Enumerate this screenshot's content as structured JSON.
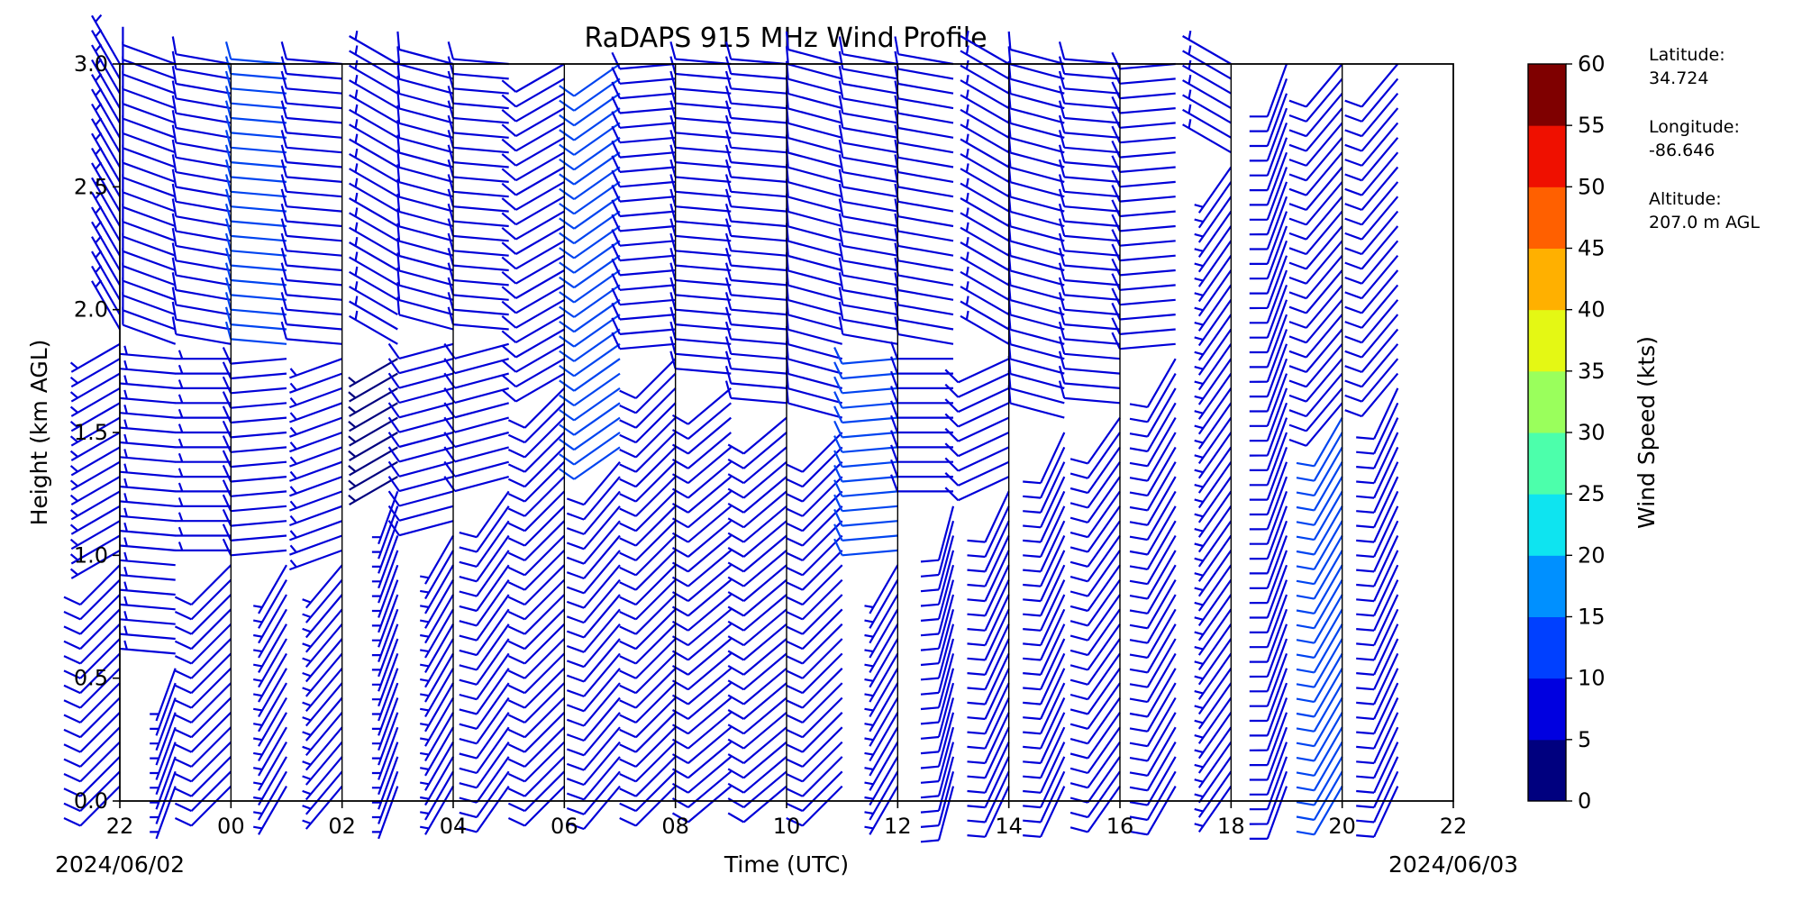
{
  "chart_data": {
    "type": "wind_barb_time_height",
    "title": "RaDAPS 915 MHz Wind Profile",
    "xlabel": "Time (UTC)",
    "ylabel": "Height (km AGL)",
    "x_tick_labels": [
      "22",
      "00",
      "02",
      "04",
      "06",
      "08",
      "10",
      "12",
      "14",
      "16",
      "18",
      "20",
      "22"
    ],
    "x_date_labels": {
      "start": "2024/06/02",
      "end": "2024/06/03"
    },
    "xlim": [
      "2024-06-02 22:00",
      "2024-06-03 22:00"
    ],
    "ylim": [
      0.0,
      3.0
    ],
    "y_ticks": [
      0.0,
      0.5,
      1.0,
      1.5,
      2.0,
      2.5,
      3.0
    ],
    "y_tick_labels": [
      "0.0",
      "0.5",
      "1.0",
      "1.5",
      "2.0",
      "2.5",
      "3.0"
    ],
    "height_sampling_km": {
      "start": 0.06,
      "end": 3.0,
      "step": 0.06
    },
    "profile_hours_utc": [
      22.0,
      23.0,
      0.0,
      1.0,
      2.0,
      3.0,
      4.0,
      5.0,
      6.0,
      7.0,
      8.0,
      9.0,
      10.0,
      11.0,
      12.0,
      13.0,
      14.0,
      15.0,
      16.0,
      17.0,
      18.0,
      19.0,
      20.0,
      21.0
    ],
    "profile_separators_utc": [
      "00",
      "02",
      "04",
      "06",
      "08",
      "10",
      "12",
      "14",
      "16",
      "18",
      "20"
    ],
    "wind_profile_segments": [
      {
        "hour": 22.0,
        "layers": [
          {
            "top_km": 1.0,
            "dir_deg": 225,
            "speed_kts": 8
          },
          {
            "top_km": 1.9,
            "dir_deg": 240,
            "speed_kts": 6
          },
          {
            "top_km": 3.0,
            "dir_deg": 330,
            "speed_kts": 6
          }
        ]
      },
      {
        "hour": 23.0,
        "layers": [
          {
            "top_km": 0.6,
            "dir_deg": 200,
            "speed_kts": 6
          },
          {
            "top_km": 1.8,
            "dir_deg": 275,
            "speed_kts": 7
          },
          {
            "top_km": 3.0,
            "dir_deg": 290,
            "speed_kts": 9
          }
        ]
      },
      {
        "hour": 0.0,
        "layers": [
          {
            "top_km": 1.0,
            "dir_deg": 225,
            "speed_kts": 8
          },
          {
            "top_km": 1.8,
            "dir_deg": 270,
            "speed_kts": 7
          },
          {
            "top_km": 3.0,
            "dir_deg": 280,
            "speed_kts": 10
          }
        ]
      },
      {
        "hour": 1.0,
        "layers": [
          {
            "top_km": 1.0,
            "dir_deg": 210,
            "speed_kts": 7
          },
          {
            "top_km": 1.8,
            "dir_deg": 265,
            "speed_kts": 9
          },
          {
            "top_km": 3.0,
            "dir_deg": 275,
            "speed_kts": 12
          }
        ]
      },
      {
        "hour": 2.0,
        "layers": [
          {
            "top_km": 1.0,
            "dir_deg": 220,
            "speed_kts": 7
          },
          {
            "top_km": 1.8,
            "dir_deg": 250,
            "speed_kts": 6
          },
          {
            "top_km": 3.0,
            "dir_deg": 275,
            "speed_kts": 9
          }
        ]
      },
      {
        "hour": 3.0,
        "layers": [
          {
            "top_km": 1.3,
            "dir_deg": 200,
            "speed_kts": 6
          },
          {
            "top_km": 1.8,
            "dir_deg": 240,
            "speed_kts": 5
          },
          {
            "top_km": 3.0,
            "dir_deg": 300,
            "speed_kts": 6
          }
        ]
      },
      {
        "hour": 4.0,
        "layers": [
          {
            "top_km": 1.1,
            "dir_deg": 210,
            "speed_kts": 7
          },
          {
            "top_km": 1.9,
            "dir_deg": 255,
            "speed_kts": 9
          },
          {
            "top_km": 3.0,
            "dir_deg": 285,
            "speed_kts": 10
          }
        ]
      },
      {
        "hour": 5.0,
        "layers": [
          {
            "top_km": 1.3,
            "dir_deg": 215,
            "speed_kts": 9
          },
          {
            "top_km": 1.9,
            "dir_deg": 255,
            "speed_kts": 10
          },
          {
            "top_km": 3.0,
            "dir_deg": 275,
            "speed_kts": 10
          }
        ]
      },
      {
        "hour": 6.0,
        "layers": [
          {
            "top_km": 1.7,
            "dir_deg": 225,
            "speed_kts": 10
          },
          {
            "top_km": 3.0,
            "dir_deg": 240,
            "speed_kts": 9
          }
        ]
      },
      {
        "hour": 7.0,
        "layers": [
          {
            "top_km": 1.4,
            "dir_deg": 220,
            "speed_kts": 10
          },
          {
            "top_km": 3.0,
            "dir_deg": 235,
            "speed_kts": 12
          }
        ]
      },
      {
        "hour": 8.0,
        "layers": [
          {
            "top_km": 1.8,
            "dir_deg": 225,
            "speed_kts": 10
          },
          {
            "top_km": 3.0,
            "dir_deg": 265,
            "speed_kts": 9
          }
        ]
      },
      {
        "hour": 9.0,
        "layers": [
          {
            "top_km": 1.7,
            "dir_deg": 230,
            "speed_kts": 9
          },
          {
            "top_km": 3.0,
            "dir_deg": 275,
            "speed_kts": 10
          }
        ]
      },
      {
        "hour": 10.0,
        "layers": [
          {
            "top_km": 1.6,
            "dir_deg": 230,
            "speed_kts": 9
          },
          {
            "top_km": 3.0,
            "dir_deg": 275,
            "speed_kts": 9
          }
        ]
      },
      {
        "hour": 11.0,
        "layers": [
          {
            "top_km": 1.5,
            "dir_deg": 225,
            "speed_kts": 9
          },
          {
            "top_km": 3.0,
            "dir_deg": 285,
            "speed_kts": 8
          }
        ]
      },
      {
        "hour": 12.0,
        "layers": [
          {
            "top_km": 1.0,
            "dir_deg": 210,
            "speed_kts": 7
          },
          {
            "top_km": 1.8,
            "dir_deg": 265,
            "speed_kts": 11
          },
          {
            "top_km": 3.0,
            "dir_deg": 280,
            "speed_kts": 9
          }
        ]
      },
      {
        "hour": 13.0,
        "layers": [
          {
            "top_km": 1.2,
            "dir_deg": 195,
            "speed_kts": 8
          },
          {
            "top_km": 1.8,
            "dir_deg": 270,
            "speed_kts": 10
          },
          {
            "top_km": 3.0,
            "dir_deg": 280,
            "speed_kts": 8
          }
        ]
      },
      {
        "hour": 14.0,
        "layers": [
          {
            "top_km": 1.3,
            "dir_deg": 205,
            "speed_kts": 8
          },
          {
            "top_km": 1.8,
            "dir_deg": 245,
            "speed_kts": 9
          },
          {
            "top_km": 3.0,
            "dir_deg": 300,
            "speed_kts": 7
          }
        ]
      },
      {
        "hour": 15.0,
        "layers": [
          {
            "top_km": 1.5,
            "dir_deg": 205,
            "speed_kts": 9
          },
          {
            "top_km": 3.0,
            "dir_deg": 285,
            "speed_kts": 8
          }
        ]
      },
      {
        "hour": 16.0,
        "layers": [
          {
            "top_km": 1.6,
            "dir_deg": 215,
            "speed_kts": 8
          },
          {
            "top_km": 3.0,
            "dir_deg": 275,
            "speed_kts": 9
          }
        ]
      },
      {
        "hour": 17.0,
        "layers": [
          {
            "top_km": 1.8,
            "dir_deg": 210,
            "speed_kts": 9
          },
          {
            "top_km": 3.0,
            "dir_deg": 265,
            "speed_kts": 8
          }
        ]
      },
      {
        "hour": 18.0,
        "layers": [
          {
            "top_km": 2.6,
            "dir_deg": 215,
            "speed_kts": 6
          },
          {
            "top_km": 3.0,
            "dir_deg": 300,
            "speed_kts": 6
          }
        ]
      },
      {
        "hour": 19.0,
        "layers": [
          {
            "top_km": 3.0,
            "dir_deg": 200,
            "speed_kts": 8
          }
        ]
      },
      {
        "hour": 20.0,
        "layers": [
          {
            "top_km": 1.6,
            "dir_deg": 210,
            "speed_kts": 11
          },
          {
            "top_km": 3.0,
            "dir_deg": 220,
            "speed_kts": 8
          }
        ]
      },
      {
        "hour": 21.0,
        "layers": [
          {
            "top_km": 1.7,
            "dir_deg": 205,
            "speed_kts": 10
          },
          {
            "top_km": 3.0,
            "dir_deg": 220,
            "speed_kts": 9
          }
        ]
      }
    ],
    "colorbar": {
      "label": "Wind Speed (kts)",
      "ticks": [
        "0",
        "5",
        "10",
        "15",
        "20",
        "25",
        "30",
        "35",
        "40",
        "45",
        "50",
        "55",
        "60"
      ],
      "range": [
        0,
        60
      ],
      "colors": [
        "#00007f",
        "#0000e0",
        "#0040ff",
        "#0090ff",
        "#0ee4f0",
        "#4cffab",
        "#9aff5c",
        "#e4f814",
        "#ffb000",
        "#ff6000",
        "#ef1000",
        "#7f0000"
      ]
    },
    "barb_speed_colors_kts": [
      {
        "max": 5,
        "color": "#00007f"
      },
      {
        "max": 10,
        "color": "#0000d8"
      },
      {
        "max": 15,
        "color": "#0044f0"
      },
      {
        "max": 20,
        "color": "#0090ff"
      }
    ]
  },
  "station": {
    "latitude_label": "Latitude:",
    "latitude_value": "34.724",
    "longitude_label": "Longitude:",
    "longitude_value": "-86.646",
    "altitude_label": "Altitude:",
    "altitude_value": "207.0 m AGL"
  }
}
